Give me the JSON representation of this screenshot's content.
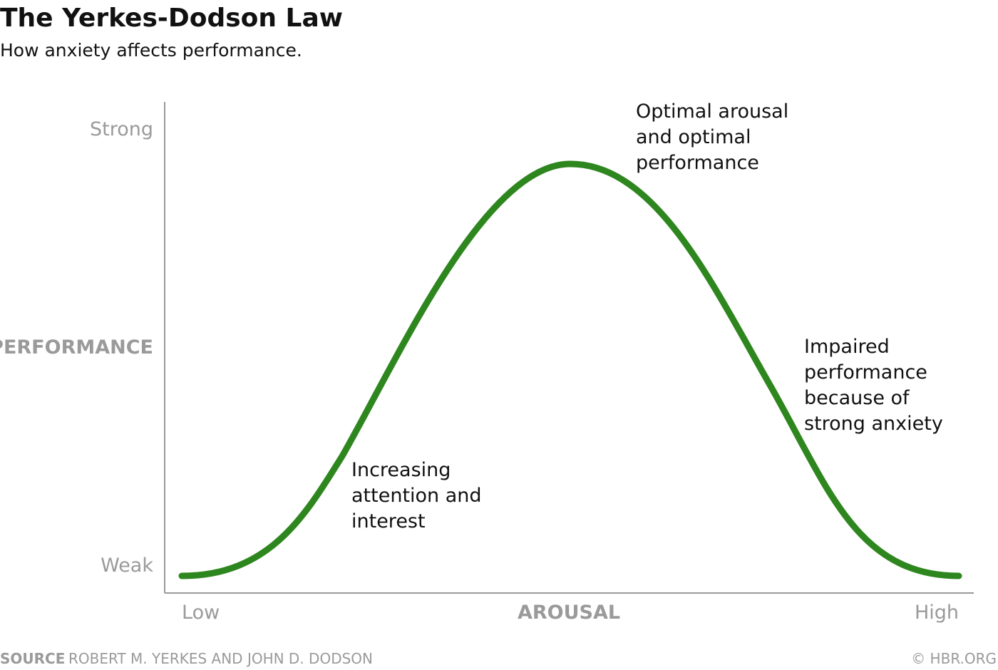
{
  "header": {
    "title": "The Yerkes-Dodson Law",
    "subtitle": "How anxiety affects performance."
  },
  "axes": {
    "y_label": "PERFORMANCE",
    "y_top": "Strong",
    "y_bottom": "Weak",
    "x_label": "AROUSAL",
    "x_left": "Low",
    "x_right": "High"
  },
  "annotations": [
    {
      "lines": [
        "Optimal arousal",
        "and optimal",
        "performance"
      ]
    },
    {
      "lines": [
        "Impaired",
        "performance",
        "because of",
        "strong anxiety"
      ]
    },
    {
      "lines": [
        "Increasing",
        "attention and",
        "interest"
      ]
    }
  ],
  "footer": {
    "source_label": "SOURCE",
    "source": "ROBERT M. YERKES AND JOHN D. DODSON",
    "credit": "© HBR.ORG"
  }
}
